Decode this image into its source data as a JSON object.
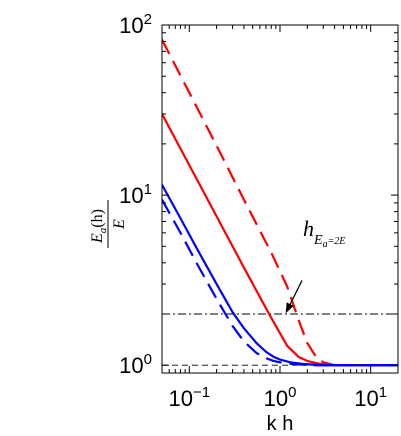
{
  "chart_data": {
    "type": "line",
    "x_scale": "log",
    "y_scale": "log",
    "xlim": [
      0.05,
      20
    ],
    "ylim": [
      0.9,
      100
    ],
    "xlabel": "k h",
    "ylabel": {
      "numerator": "E",
      "numerator_sub": "a",
      "numerator_arg": "(h)",
      "denominator": "E"
    },
    "x_ticks": [
      {
        "value": 0.1,
        "base": "10",
        "exp": "−1"
      },
      {
        "value": 1,
        "base": "10",
        "exp": "0"
      },
      {
        "value": 10,
        "base": "10",
        "exp": "1"
      }
    ],
    "y_ticks": [
      {
        "value": 1,
        "base": "10",
        "exp": "0"
      },
      {
        "value": 10,
        "base": "10",
        "exp": "1"
      },
      {
        "value": 100,
        "base": "10",
        "exp": "2"
      }
    ],
    "grid": false,
    "series": [
      {
        "color": "#ff0000",
        "style": "dashed",
        "x": [
          0.05,
          0.1,
          0.2,
          0.4,
          0.8,
          1.2,
          1.6,
          2.0,
          2.5,
          3.0,
          4.0,
          6.0,
          10.0,
          20.0
        ],
        "y": [
          82,
          40,
          19.5,
          9.4,
          4.6,
          2.9,
          1.85,
          1.35,
          1.12,
          1.04,
          1.0,
          1.0,
          1.0,
          1.0
        ]
      },
      {
        "color": "#ff0000",
        "style": "solid",
        "x": [
          0.05,
          0.1,
          0.2,
          0.4,
          0.8,
          1.2,
          1.6,
          2.0,
          2.5,
          3.0,
          4.0,
          6.0,
          10.0,
          20.0
        ],
        "y": [
          30,
          15,
          7.5,
          3.75,
          1.9,
          1.3,
          1.12,
          1.06,
          1.03,
          1.01,
          1.0,
          1.0,
          1.0,
          1.0
        ]
      },
      {
        "color": "#0000ff",
        "style": "solid",
        "x": [
          0.05,
          0.08,
          0.12,
          0.2,
          0.3,
          0.4,
          0.55,
          0.7,
          0.85,
          1.0,
          1.3,
          1.7,
          2.2,
          3.0,
          5.0,
          10.0,
          20.0
        ],
        "y": [
          11.5,
          7.3,
          4.9,
          3.0,
          2.05,
          1.65,
          1.35,
          1.2,
          1.12,
          1.08,
          1.04,
          1.02,
          1.01,
          1.0,
          1.0,
          1.0,
          1.0
        ]
      },
      {
        "color": "#0000ff",
        "style": "dashed",
        "x": [
          0.05,
          0.08,
          0.12,
          0.2,
          0.3,
          0.4,
          0.55,
          0.7,
          0.85,
          1.0,
          1.3,
          1.7,
          2.2,
          3.0,
          5.0,
          10.0,
          20.0
        ],
        "y": [
          9.4,
          6.0,
          4.0,
          2.45,
          1.7,
          1.38,
          1.18,
          1.1,
          1.06,
          1.04,
          1.02,
          1.01,
          1.0,
          1.0,
          1.0,
          1.0,
          1.0
        ]
      }
    ],
    "hlines": [
      {
        "y": 2,
        "style": "dashdot",
        "color": "#000000"
      },
      {
        "y": 1,
        "style": "dashed",
        "color": "#000000"
      }
    ],
    "annotation": {
      "symbol": "h",
      "sub_main": "E",
      "sub_sub": "a",
      "sub_rest": "=2E",
      "arrow_from": {
        "x": 1.75,
        "y": 3.15
      },
      "arrow_to": {
        "x": 1.17,
        "y": 2.05
      }
    }
  }
}
